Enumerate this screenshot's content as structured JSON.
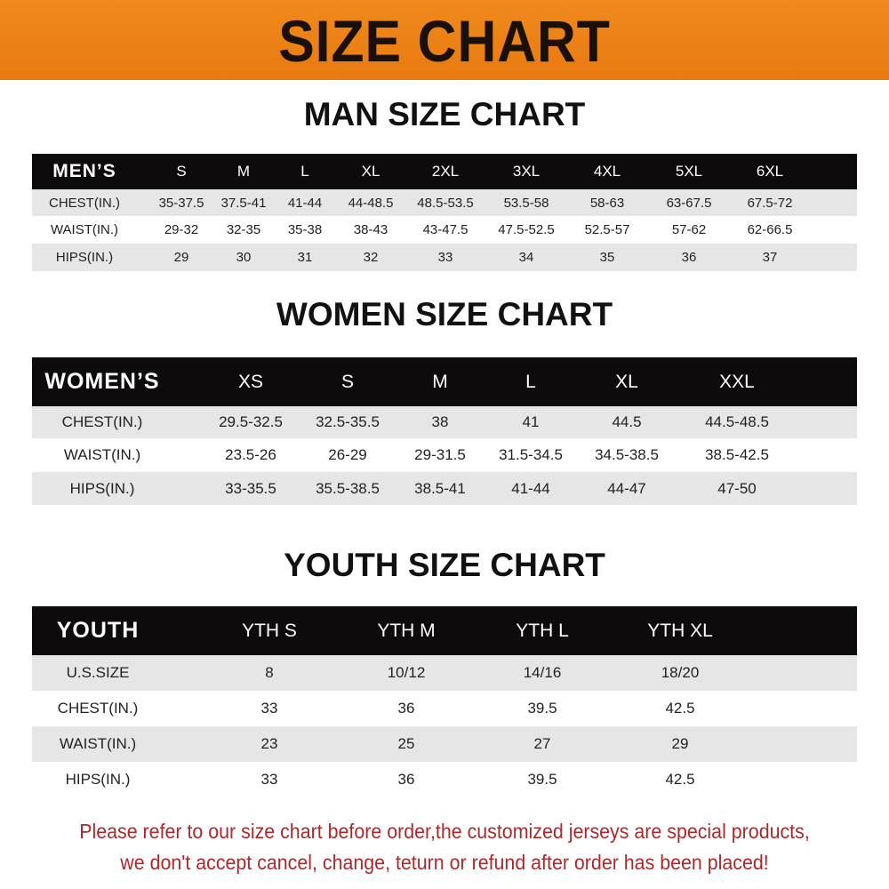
{
  "banner_title": "SIZE CHART",
  "men": {
    "title": "MAN SIZE CHART",
    "header": [
      "MEN’S",
      "S",
      "M",
      "L",
      "XL",
      "2XL",
      "3XL",
      "4XL",
      "5XL",
      "6XL"
    ],
    "rows": [
      [
        "CHEST(IN.)",
        "35-37.5",
        "37.5-41",
        "41-44",
        "44-48.5",
        "48.5-53.5",
        "53.5-58",
        "58-63",
        "63-67.5",
        "67.5-72"
      ],
      [
        "WAIST(IN.)",
        "29-32",
        "32-35",
        "35-38",
        "38-43",
        "43-47.5",
        "47.5-52.5",
        "52.5-57",
        "57-62",
        "62-66.5"
      ],
      [
        "HIPS(IN.)",
        "29",
        "30",
        "31",
        "32",
        "33",
        "34",
        "35",
        "36",
        "37"
      ]
    ]
  },
  "women": {
    "title": "WOMEN SIZE CHART",
    "header": [
      "WOMEN’S",
      "XS",
      "S",
      "M",
      "L",
      "XL",
      "XXL"
    ],
    "rows": [
      [
        "CHEST(IN.)",
        "29.5-32.5",
        "32.5-35.5",
        "38",
        "41",
        "44.5",
        "44.5-48.5"
      ],
      [
        "WAIST(IN.)",
        "23.5-26",
        "26-29",
        "29-31.5",
        "31.5-34.5",
        "34.5-38.5",
        "38.5-42.5"
      ],
      [
        "HIPS(IN.)",
        "33-35.5",
        "35.5-38.5",
        "38.5-41",
        "41-44",
        "44-47",
        "47-50"
      ]
    ]
  },
  "youth": {
    "title": "YOUTH SIZE CHART",
    "header": [
      "YOUTH",
      "YTH S",
      "YTH M",
      "YTH L",
      "YTH XL"
    ],
    "rows": [
      [
        "U.S.SIZE",
        "8",
        "10/12",
        "14/16",
        "18/20"
      ],
      [
        "CHEST(IN.)",
        "33",
        "36",
        "39.5",
        "42.5"
      ],
      [
        "WAIST(IN.)",
        "23",
        "25",
        "27",
        "29"
      ],
      [
        "HIPS(IN.)",
        "33",
        "36",
        "39.5",
        "42.5"
      ]
    ]
  },
  "notice": {
    "line1": "Please refer to our size chart before order,the customized jerseys are special products,",
    "line2": "we don't accept cancel, change, teturn or refund after order has been placed!"
  },
  "colors": {
    "banner": "#f08a1c",
    "header_row": "#0d0b0b",
    "stripe": "#e6e6e6",
    "notice": "#b0282a"
  }
}
